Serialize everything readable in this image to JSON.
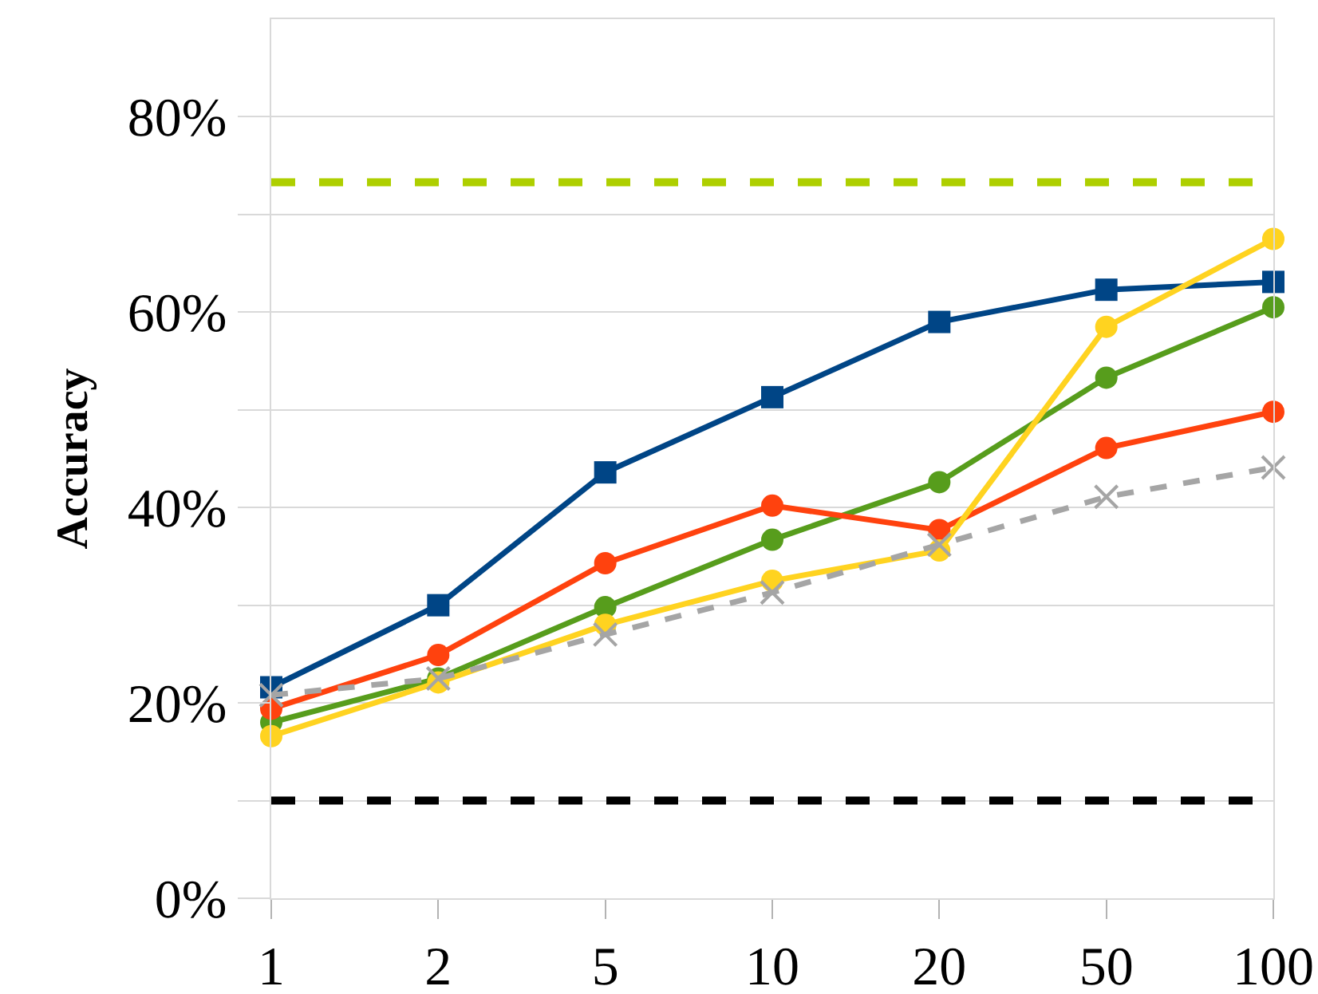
{
  "chart_data": {
    "type": "line",
    "ylabel": "Accuracy",
    "categories": [
      "1",
      "2",
      "5",
      "10",
      "20",
      "50",
      "100"
    ],
    "series": [
      {
        "color": "#004586",
        "marker": "square",
        "values": [
          21.6,
          30,
          43.6,
          51.3,
          59,
          62.3,
          63.1
        ]
      },
      {
        "color": "#579d1c",
        "marker": "circle",
        "values": [
          18,
          22.5,
          29.8,
          36.7,
          42.6,
          53.3,
          60.5
        ]
      },
      {
        "color": "#ff420e",
        "marker": "circle",
        "values": [
          19.4,
          24.9,
          34.3,
          40.2,
          37.7,
          46.1,
          49.8
        ]
      },
      {
        "color": "#ffd320",
        "marker": "circle",
        "values": [
          16.6,
          22.1,
          28,
          32.5,
          35.6,
          58.5,
          67.5
        ]
      },
      {
        "color": "#a5a5a5",
        "marker": "cross",
        "line_style": "dashed",
        "values": [
          20.8,
          22.5,
          27,
          31.3,
          36.2,
          41.1,
          44.1
        ]
      }
    ],
    "ref_lines": [
      {
        "axis": "y",
        "value": 73.3,
        "color": "#aecf00",
        "line_style": "dashed"
      },
      {
        "axis": "y",
        "value": 10,
        "color": "#000000",
        "line_style": "dashed"
      }
    ],
    "ylim": [
      0,
      90
    ],
    "yticks": [
      {
        "value": 0,
        "label": "0%"
      },
      {
        "value": 10,
        "label": null
      },
      {
        "value": 20,
        "label": "20%"
      },
      {
        "value": 30,
        "label": null
      },
      {
        "value": 40,
        "label": "40%"
      },
      {
        "value": 50,
        "label": null
      },
      {
        "value": 60,
        "label": "60%"
      },
      {
        "value": 70,
        "label": null
      },
      {
        "value": 80,
        "label": "80%"
      }
    ],
    "grid": "y"
  }
}
